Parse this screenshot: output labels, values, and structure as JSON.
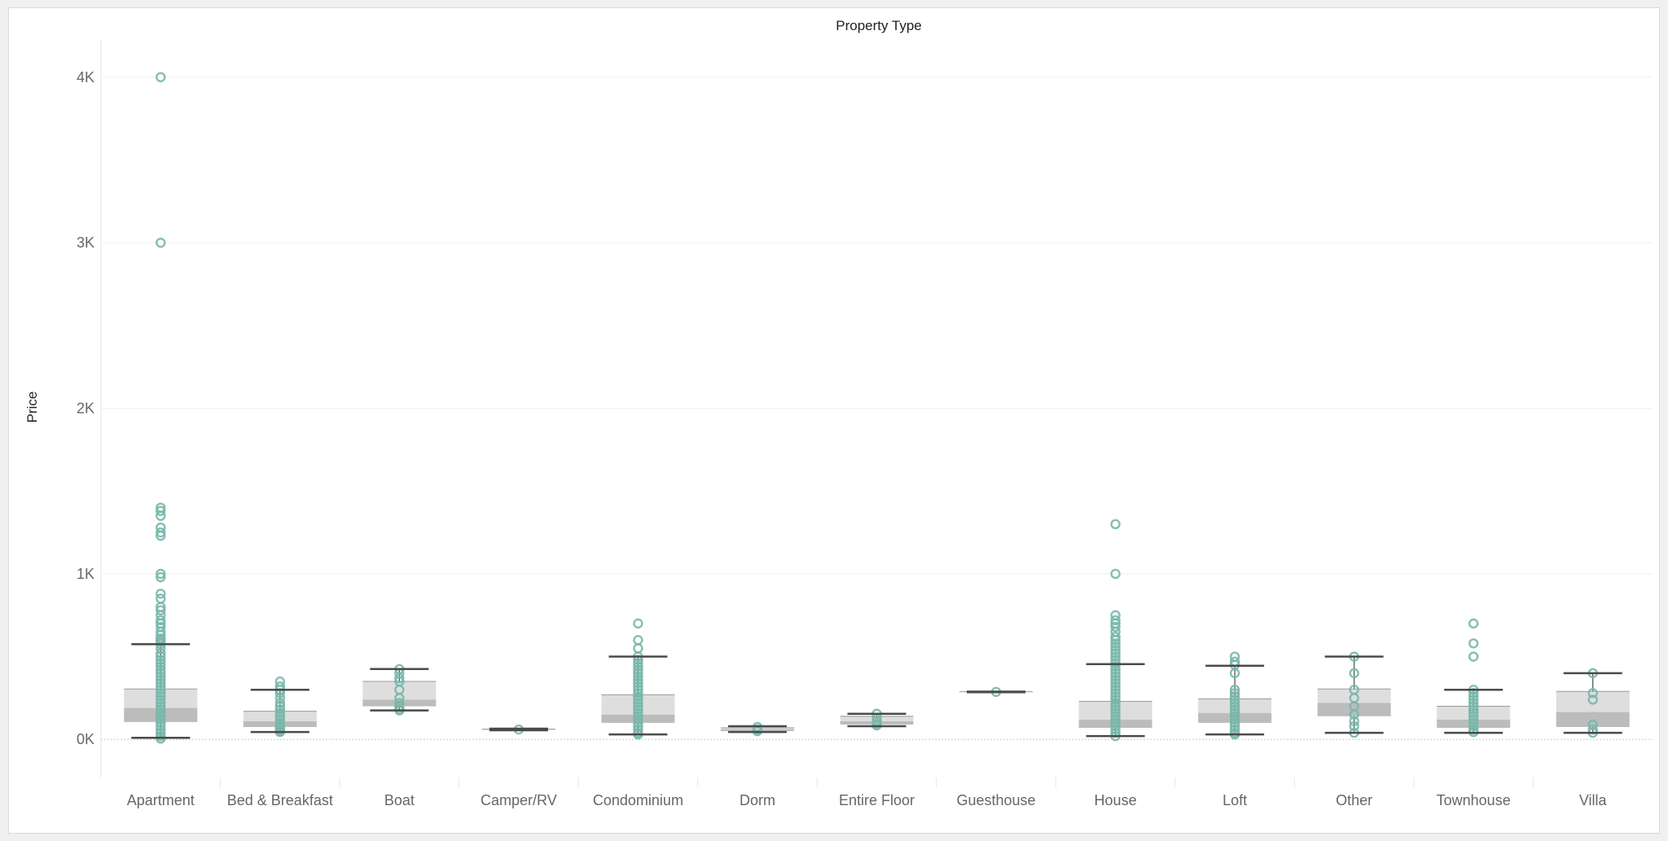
{
  "chart_data": {
    "type": "box",
    "title": "Property Type",
    "ylabel": "Price",
    "ylim": [
      -230,
      4230
    ],
    "y_ticks": [
      {
        "value": 0,
        "label": "0K"
      },
      {
        "value": 1000,
        "label": "1K"
      },
      {
        "value": 2000,
        "label": "2K"
      },
      {
        "value": 3000,
        "label": "3K"
      },
      {
        "value": 4000,
        "label": "4K"
      }
    ],
    "grid": true,
    "categories": [
      "Apartment",
      "Bed & Breakfast",
      "Boat",
      "Camper/RV",
      "Condominium",
      "Dorm",
      "Entire Floor",
      "Guesthouse",
      "House",
      "Loft",
      "Other",
      "Townhouse",
      "Villa"
    ],
    "boxes": [
      {
        "whisker_low": 10,
        "q1": 105,
        "median": 190,
        "q3": 305,
        "whisker_high": 575,
        "points": [
          4000,
          3000,
          1400,
          1380,
          1350,
          1280,
          1250,
          1230,
          1000,
          980,
          880,
          850,
          800,
          780,
          750,
          720,
          700,
          680,
          650,
          630,
          610,
          600,
          590,
          575,
          550,
          520,
          500,
          480,
          460,
          440,
          420,
          400,
          380,
          360,
          340,
          320,
          300,
          280,
          260,
          240,
          220,
          200,
          180,
          160,
          140,
          120,
          100,
          80,
          60,
          40,
          20,
          5
        ]
      },
      {
        "whisker_low": 45,
        "q1": 75,
        "median": 110,
        "q3": 170,
        "whisker_high": 300,
        "points": [
          350,
          320,
          300,
          280,
          250,
          220,
          200,
          180,
          160,
          140,
          120,
          100,
          90,
          80,
          70,
          60,
          50,
          45
        ]
      },
      {
        "whisker_low": 175,
        "q1": 200,
        "median": 240,
        "q3": 350,
        "whisker_high": 425,
        "points": [
          425,
          400,
          370,
          350,
          300,
          250,
          220,
          200,
          185,
          175
        ]
      },
      {
        "whisker_low": 55,
        "q1": 58,
        "median": 60,
        "q3": 62,
        "whisker_high": 65,
        "points": [
          60
        ]
      },
      {
        "whisker_low": 30,
        "q1": 100,
        "median": 150,
        "q3": 270,
        "whisker_high": 500,
        "points": [
          700,
          600,
          550,
          500,
          480,
          460,
          440,
          420,
          400,
          380,
          360,
          340,
          320,
          300,
          280,
          260,
          240,
          220,
          200,
          180,
          160,
          140,
          120,
          100,
          80,
          60,
          40,
          30
        ]
      },
      {
        "whisker_low": 45,
        "q1": 50,
        "median": 60,
        "q3": 70,
        "whisker_high": 80,
        "points": [
          75,
          60,
          50
        ]
      },
      {
        "whisker_low": 80,
        "q1": 90,
        "median": 110,
        "q3": 140,
        "whisker_high": 155,
        "points": [
          155,
          130,
          110,
          95,
          85
        ]
      },
      {
        "whisker_low": 285,
        "q1": 286,
        "median": 287,
        "q3": 288,
        "whisker_high": 289,
        "points": [
          287
        ]
      },
      {
        "whisker_low": 20,
        "q1": 70,
        "median": 120,
        "q3": 230,
        "whisker_high": 455,
        "points": [
          1300,
          1000,
          750,
          720,
          700,
          680,
          650,
          620,
          600,
          580,
          560,
          540,
          520,
          500,
          480,
          460,
          440,
          420,
          400,
          380,
          360,
          340,
          320,
          300,
          280,
          260,
          240,
          220,
          200,
          180,
          160,
          140,
          120,
          100,
          80,
          60,
          40,
          20
        ]
      },
      {
        "whisker_low": 30,
        "q1": 100,
        "median": 160,
        "q3": 245,
        "whisker_high": 445,
        "points": [
          500,
          470,
          450,
          400,
          300,
          280,
          260,
          240,
          220,
          200,
          180,
          160,
          140,
          120,
          100,
          80,
          60,
          40,
          30
        ]
      },
      {
        "whisker_low": 40,
        "q1": 140,
        "median": 220,
        "q3": 305,
        "whisker_high": 500,
        "points": [
          500,
          400,
          300,
          250,
          200,
          150,
          110,
          80,
          40
        ]
      },
      {
        "whisker_low": 40,
        "q1": 70,
        "median": 120,
        "q3": 200,
        "whisker_high": 300,
        "points": [
          700,
          580,
          500,
          300,
          280,
          260,
          240,
          220,
          200,
          180,
          160,
          140,
          120,
          100,
          80,
          60,
          45
        ]
      },
      {
        "whisker_low": 40,
        "q1": 75,
        "median": 165,
        "q3": 290,
        "whisker_high": 400,
        "points": [
          400,
          280,
          240,
          90,
          60,
          40
        ]
      }
    ]
  },
  "colors": {
    "point": "#78b7aa",
    "box_upper": "#dedede",
    "box_lower": "#bcbcbc",
    "whisker": "#4a4a4a",
    "grid": "#efefef",
    "zero_line": "#c8c8c8",
    "divider": "#e6e6e6"
  }
}
